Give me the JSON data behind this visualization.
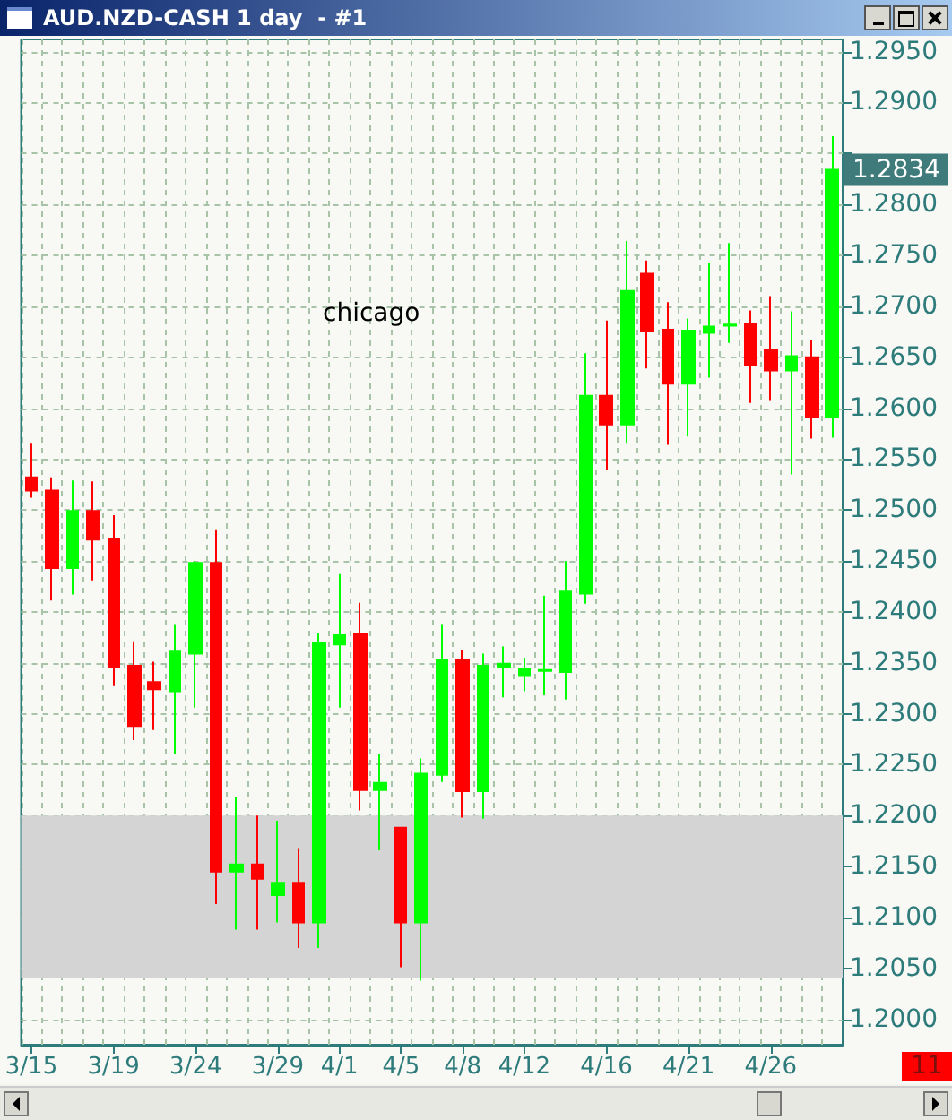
{
  "chart_data": {
    "type": "candlestick",
    "title": "AUD.NZD-CASH 1 day  - #1",
    "categories": [
      "3/15",
      null,
      null,
      null,
      "3/19",
      null,
      null,
      null,
      "3/24",
      null,
      null,
      null,
      "3/29",
      null,
      null,
      "4/1",
      null,
      null,
      "4/5",
      null,
      null,
      "4/8",
      null,
      null,
      "4/12",
      null,
      null,
      null,
      "4/16",
      null,
      null,
      null,
      "4/21",
      null,
      null,
      null,
      "4/26",
      null,
      null,
      null
    ],
    "ohlc": [
      [
        1.2532,
        1.2566,
        1.2512,
        1.2519
      ],
      [
        1.2519,
        1.2532,
        1.2411,
        1.2443
      ],
      [
        1.2443,
        1.2529,
        1.2417,
        1.2499
      ],
      [
        1.2499,
        1.2528,
        1.2431,
        1.2471
      ],
      [
        1.2472,
        1.2495,
        1.2327,
        1.2346
      ],
      [
        1.2347,
        1.2371,
        1.2274,
        1.2288
      ],
      [
        1.2331,
        1.2351,
        1.2284,
        1.2324
      ],
      [
        1.2322,
        1.2388,
        1.226,
        1.2361
      ],
      [
        1.2359,
        1.245,
        1.2306,
        1.2448
      ],
      [
        1.2448,
        1.2481,
        1.2113,
        1.2145
      ],
      [
        1.2145,
        1.2218,
        1.2088,
        1.2152
      ],
      [
        1.2152,
        1.22,
        1.2088,
        1.2138
      ],
      [
        1.2122,
        1.2195,
        1.2095,
        1.2134
      ],
      [
        1.2134,
        1.2168,
        1.207,
        1.2095
      ],
      [
        1.2095,
        1.2379,
        1.207,
        1.2369
      ],
      [
        1.2368,
        1.2437,
        1.2306,
        1.2377
      ],
      [
        1.2378,
        1.2409,
        1.2205,
        1.2225
      ],
      [
        1.2225,
        1.226,
        1.2166,
        1.2232
      ],
      [
        1.2188,
        1.2188,
        1.2051,
        1.2095
      ],
      [
        1.2095,
        1.2256,
        1.2038,
        1.2241
      ],
      [
        1.224,
        1.2388,
        1.2233,
        1.2353
      ],
      [
        1.2353,
        1.2362,
        1.2198,
        1.2224
      ],
      [
        1.2224,
        1.2359,
        1.2197,
        1.2347
      ],
      [
        1.2346,
        1.2366,
        1.2316,
        1.2349
      ],
      [
        1.2337,
        1.2355,
        1.2322,
        1.2344
      ],
      [
        1.2342,
        1.2416,
        1.2318,
        1.2343
      ],
      [
        1.2341,
        1.245,
        1.2314,
        1.242
      ],
      [
        1.2418,
        1.2654,
        1.2408,
        1.2612
      ],
      [
        1.2612,
        1.2686,
        1.2539,
        1.2584
      ],
      [
        1.2584,
        1.2764,
        1.2566,
        1.2715
      ],
      [
        1.2732,
        1.2745,
        1.2639,
        1.2676
      ],
      [
        1.2677,
        1.2704,
        1.2564,
        1.2624
      ],
      [
        1.2624,
        1.2688,
        1.2572,
        1.2676
      ],
      [
        1.2674,
        1.2743,
        1.263,
        1.268
      ],
      [
        1.2681,
        1.2762,
        1.2664,
        1.2682
      ],
      [
        1.2683,
        1.2696,
        1.2605,
        1.2642
      ],
      [
        1.2657,
        1.271,
        1.2608,
        1.2637
      ],
      [
        1.2637,
        1.2695,
        1.2535,
        1.2651
      ],
      [
        1.265,
        1.2667,
        1.257,
        1.2591
      ],
      [
        1.2591,
        1.2867,
        1.2571,
        1.2834
      ]
    ],
    "colors": [
      "#ff0000",
      "#ff0000",
      "#00ff00",
      "#ff0000",
      "#ff0000",
      "#ff0000",
      "#ff0000",
      "#00ff00",
      "#00ff00",
      "#ff0000",
      "#00ff00",
      "#ff0000",
      "#00ff00",
      "#ff0000",
      "#00ff00",
      "#00ff00",
      "#ff0000",
      "#00ff00",
      "#ff0000",
      "#00ff00",
      "#00ff00",
      "#ff0000",
      "#00ff00",
      "#00ff00",
      "#00ff00",
      "#00ff00",
      "#00ff00",
      "#00ff00",
      "#ff0000",
      "#00ff00",
      "#ff0000",
      "#ff0000",
      "#00ff00",
      "#00ff00",
      "#00ff00",
      "#ff0000",
      "#ff0000",
      "#00ff00",
      "#ff0000",
      "#00ff00"
    ],
    "ylim": [
      1.1975,
      1.2962
    ],
    "yticks": [
      {
        "value": 1.2,
        "label": "1.2000"
      },
      {
        "value": 1.205,
        "label": "1.2050"
      },
      {
        "value": 1.21,
        "label": "1.2100"
      },
      {
        "value": 1.215,
        "label": "1.2150"
      },
      {
        "value": 1.22,
        "label": "1.2200"
      },
      {
        "value": 1.225,
        "label": "1.2250"
      },
      {
        "value": 1.23,
        "label": "1.2300"
      },
      {
        "value": 1.235,
        "label": "1.2350"
      },
      {
        "value": 1.24,
        "label": "1.2400"
      },
      {
        "value": 1.245,
        "label": "1.2450"
      },
      {
        "value": 1.25,
        "label": "1.2500"
      },
      {
        "value": 1.255,
        "label": "1.2550"
      },
      {
        "value": 1.26,
        "label": "1.2600"
      },
      {
        "value": 1.265,
        "label": "1.2650"
      },
      {
        "value": 1.27,
        "label": "1.2700"
      },
      {
        "value": 1.275,
        "label": "1.2750"
      },
      {
        "value": 1.28,
        "label": "1.2800"
      },
      {
        "value": 1.285,
        "label": null
      },
      {
        "value": 1.29,
        "label": "1.2900"
      },
      {
        "value": 1.295,
        "label": "1.2950"
      }
    ],
    "bands": [
      {
        "axis": "y",
        "from": 1.204,
        "to": 1.22,
        "color": "#d4d4d4"
      }
    ],
    "annotations": [
      "chicago",
      "1.2834",
      "11"
    ],
    "grid": true
  }
}
